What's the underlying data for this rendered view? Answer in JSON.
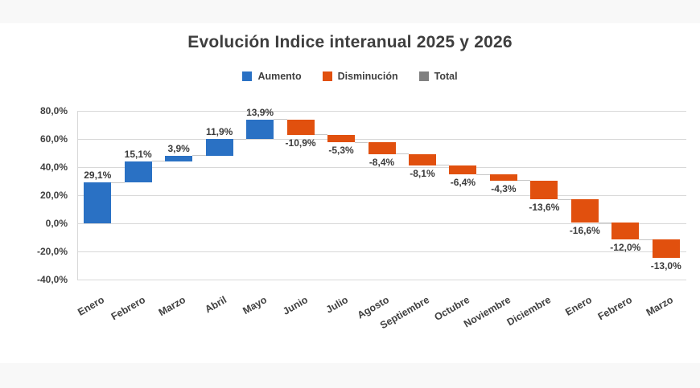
{
  "chart_data": {
    "type": "bar",
    "subtype": "waterfall",
    "title": "Evolución Indice interanual 2025 y 2026",
    "categories": [
      "Enero",
      "Febrero",
      "Marzo",
      "Abril",
      "Mayo",
      "Junio",
      "Julio",
      "Agosto",
      "Septiembre",
      "Octubre",
      "Noviembre",
      "Diciembre",
      "Enero",
      "Febrero",
      "Marzo"
    ],
    "values": [
      29.1,
      15.1,
      3.9,
      11.9,
      13.9,
      -10.9,
      -5.3,
      -8.4,
      -8.1,
      -6.4,
      -4.3,
      -13.6,
      -16.6,
      -12.0,
      -13.0
    ],
    "value_labels": [
      "29,1%",
      "15,1%",
      "3,9%",
      "11,9%",
      "13,9%",
      "-10,9%",
      "-5,3%",
      "-8,4%",
      "-8,1%",
      "-6,4%",
      "-4,3%",
      "-13,6%",
      "-16,6%",
      "-12,0%",
      "-13,0%"
    ],
    "cumulative_end": [
      29.1,
      44.2,
      48.1,
      60.0,
      73.9,
      63.0,
      57.7,
      49.3,
      41.2,
      34.8,
      30.5,
      16.9,
      0.3,
      -11.7,
      -24.7
    ],
    "xlabel": "",
    "ylabel": "",
    "ylim": [
      -40,
      80
    ],
    "y_ticks": [
      {
        "value": 80,
        "label": "80,0%"
      },
      {
        "value": 60,
        "label": "60,0%"
      },
      {
        "value": 40,
        "label": "40,0%"
      },
      {
        "value": 20,
        "label": "20,0%"
      },
      {
        "value": 0,
        "label": "0,0%"
      },
      {
        "value": -20,
        "label": "-20,0%"
      },
      {
        "value": -40,
        "label": "-40,0%"
      }
    ],
    "grid": true,
    "legend_position": "top",
    "legend": [
      {
        "label": "Aumento",
        "color": "#2a71c4"
      },
      {
        "label": "Disminución",
        "color": "#e1500e"
      },
      {
        "label": "Total",
        "color": "#808080"
      }
    ],
    "colors": {
      "increase": "#2a71c4",
      "decrease": "#e1500e",
      "total": "#808080",
      "gridline": "#d8d8d8",
      "connector": "#c6c6c6",
      "text": "#404040",
      "page_strip": "#f8f8f8"
    }
  }
}
